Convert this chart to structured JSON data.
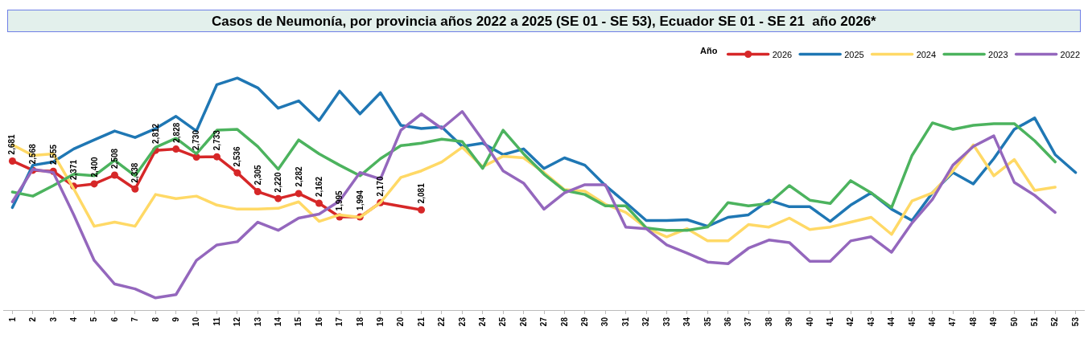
{
  "chart_data": {
    "type": "line",
    "title": "Casos de Neumonía, por provincia años 2022 a 2025 (SE 01 - SE 53), Ecuador SE 01 - SE 21  año 2026*",
    "categories": [
      "1",
      "2",
      "3",
      "4",
      "5",
      "6",
      "7",
      "8",
      "9",
      "10",
      "11",
      "12",
      "13",
      "14",
      "15",
      "16",
      "17",
      "18",
      "19",
      "20",
      "21",
      "22",
      "23",
      "24",
      "25",
      "26",
      "27",
      "28",
      "29",
      "30",
      "31",
      "32",
      "33",
      "34",
      "35",
      "36",
      "37",
      "38",
      "39",
      "40",
      "41",
      "42",
      "43",
      "44",
      "45",
      "46",
      "47",
      "48",
      "49",
      "50",
      "51",
      "52",
      "53"
    ],
    "legend_title": "Año",
    "legend": "top right",
    "tick_labels": "x",
    "line_style": "solid",
    "series": [
      {
        "name": "2026",
        "color": "#d62728",
        "marker": "circle",
        "values": [
          2681,
          2568,
          2555,
          2371,
          2400,
          2508,
          2338,
          2812,
          2828,
          2730,
          2733,
          2536,
          2305,
          2220,
          2282,
          2162,
          1995,
          1994,
          2170,
          null,
          2081,
          null,
          null,
          null,
          null,
          null,
          null,
          null,
          null,
          null,
          null,
          null,
          null,
          null,
          null,
          null,
          null,
          null,
          null,
          null,
          null,
          null,
          null,
          null,
          null,
          null,
          null,
          null,
          null,
          null,
          null,
          null,
          null
        ],
        "value_labels": [
          "2,681",
          "2,568",
          "2,555",
          "2,371",
          "2,400",
          "2,508",
          "2,338",
          "2,812",
          "2,828",
          "2,730",
          "2,733",
          "2,536",
          "2,305",
          "2,220",
          "2,282",
          "2,162",
          "1,995",
          "1,994",
          "2,170",
          null,
          "2,081",
          null,
          null,
          null,
          null,
          null,
          null,
          null,
          null,
          null,
          null,
          null,
          null,
          null,
          null,
          null,
          null,
          null,
          null,
          null,
          null,
          null,
          null,
          null,
          null,
          null,
          null,
          null,
          null,
          null,
          null,
          null,
          null
        ]
      },
      {
        "name": "2025",
        "color": "#1f77b4",
        "marker": "none",
        "values": [
          2110,
          2630,
          2670,
          2830,
          2940,
          3050,
          2970,
          3080,
          3230,
          3050,
          3620,
          3700,
          3580,
          3330,
          3420,
          3180,
          3540,
          3260,
          3520,
          3120,
          3080,
          3100,
          2860,
          2900,
          2760,
          2830,
          2590,
          2720,
          2630,
          2380,
          2170,
          1950,
          1950,
          1960,
          1880,
          1990,
          2020,
          2200,
          2120,
          2120,
          1940,
          2140,
          2290,
          2090,
          1950,
          2290,
          2540,
          2400,
          2710,
          3070,
          3210,
          2760,
          2540
        ]
      },
      {
        "name": "2024",
        "color": "#ffd966",
        "marker": "none",
        "values": [
          2880,
          2750,
          2770,
          2340,
          1880,
          1930,
          1880,
          2270,
          2220,
          2250,
          2140,
          2090,
          2090,
          2100,
          2180,
          1940,
          2020,
          1990,
          2170,
          2480,
          2560,
          2670,
          2850,
          2610,
          2740,
          2720,
          2540,
          2330,
          2310,
          2150,
          2050,
          1860,
          1750,
          1850,
          1700,
          1700,
          1900,
          1870,
          1980,
          1840,
          1870,
          1930,
          1990,
          1780,
          2190,
          2290,
          2560,
          2880,
          2500,
          2700,
          2320,
          2360,
          null
        ]
      },
      {
        "name": "2023",
        "color": "#4cb35e",
        "marker": "none",
        "values": [
          2300,
          2250,
          2380,
          2520,
          2500,
          2690,
          2500,
          2850,
          2960,
          2770,
          3060,
          3070,
          2860,
          2580,
          2940,
          2770,
          2630,
          2500,
          2710,
          2870,
          2900,
          2950,
          2920,
          2590,
          3060,
          2770,
          2520,
          2320,
          2270,
          2130,
          2130,
          1860,
          1830,
          1830,
          1870,
          2170,
          2130,
          2160,
          2380,
          2200,
          2160,
          2440,
          2290,
          2110,
          2750,
          3150,
          3070,
          3120,
          3140,
          3140,
          2930,
          2670,
          null
        ]
      },
      {
        "name": "2022",
        "color": "#9467bd",
        "marker": "none",
        "values": [
          2180,
          2580,
          2540,
          2020,
          1460,
          1170,
          1110,
          1000,
          1040,
          1460,
          1650,
          1690,
          1930,
          1830,
          1980,
          2030,
          2190,
          2540,
          2460,
          3060,
          3260,
          3080,
          3290,
          2940,
          2560,
          2410,
          2090,
          2290,
          2390,
          2390,
          1870,
          1850,
          1650,
          1550,
          1440,
          1420,
          1610,
          1710,
          1680,
          1450,
          1450,
          1700,
          1750,
          1560,
          1920,
          2210,
          2630,
          2860,
          2990,
          2420,
          2260,
          2050,
          null
        ]
      }
    ]
  }
}
